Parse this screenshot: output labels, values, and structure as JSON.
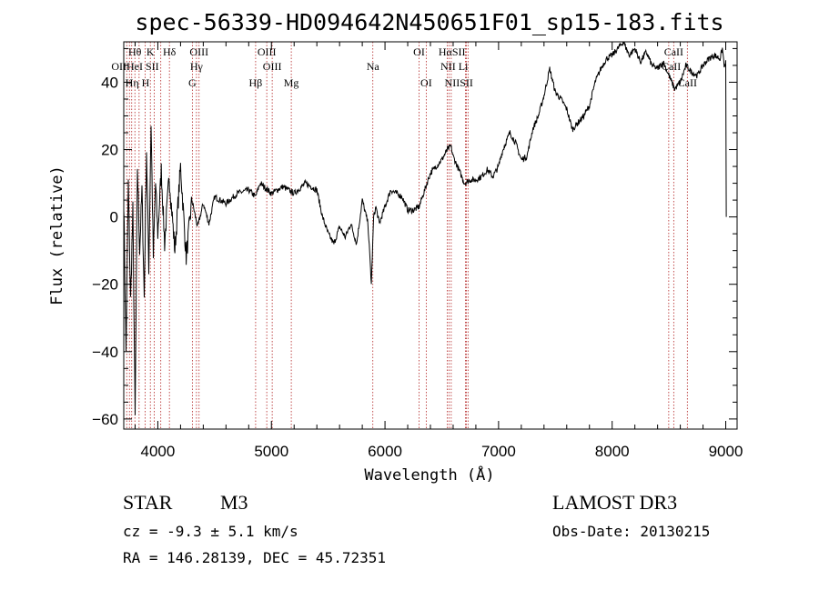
{
  "chart_data": {
    "type": "line",
    "title": "spec-56339-HD094642N450651F01_sp15-183.fits",
    "xlabel": "Wavelength (Å)",
    "ylabel": "Flux (relative)",
    "xlim": [
      3700,
      9100
    ],
    "ylim": [
      -63,
      52
    ],
    "x_ticks": [
      4000,
      5000,
      6000,
      7000,
      8000,
      9000
    ],
    "y_ticks": [
      -60,
      -40,
      -20,
      0,
      20,
      40
    ],
    "grid": false,
    "legend": "none",
    "series": [
      {
        "color": "#000000",
        "x": [
          3700,
          3720,
          3740,
          3760,
          3780,
          3800,
          3820,
          3840,
          3860,
          3880,
          3900,
          3920,
          3940,
          3960,
          3980,
          4000,
          4030,
          4060,
          4100,
          4150,
          4200,
          4250,
          4300,
          4350,
          4400,
          4450,
          4500,
          4600,
          4700,
          4800,
          4860,
          4900,
          5000,
          5100,
          5200,
          5300,
          5400,
          5450,
          5500,
          5550,
          5600,
          5650,
          5700,
          5750,
          5800,
          5850,
          5880,
          5900,
          5920,
          5950,
          6000,
          6050,
          6100,
          6150,
          6200,
          6250,
          6300,
          6350,
          6400,
          6450,
          6500,
          6550,
          6580,
          6600,
          6650,
          6700,
          6750,
          6800,
          6850,
          6900,
          6950,
          7000,
          7020,
          7050,
          7100,
          7150,
          7200,
          7250,
          7300,
          7350,
          7400,
          7450,
          7500,
          7550,
          7600,
          7650,
          7700,
          7750,
          7800,
          7850,
          7900,
          7950,
          8000,
          8050,
          8100,
          8150,
          8200,
          8250,
          8300,
          8350,
          8400,
          8450,
          8500,
          8550,
          8600,
          8650,
          8700,
          8750,
          8800,
          8850,
          8900,
          8950,
          8970,
          8990,
          9000,
          9005
        ],
        "y": [
          5,
          -40,
          10,
          -25,
          2,
          -60,
          15,
          -10,
          8,
          -24,
          20,
          -15,
          28,
          -12,
          10,
          -5,
          14,
          -8,
          12,
          -10,
          15,
          -12,
          5,
          -3,
          4,
          -2,
          6,
          4,
          7,
          8,
          6,
          10,
          7,
          9,
          7,
          10,
          8,
          0,
          -5,
          -8,
          -3,
          -6,
          -2,
          -8,
          5,
          -2,
          -20,
          0,
          3,
          -2,
          3,
          8,
          7,
          6,
          2,
          2,
          3,
          8,
          13,
          15,
          17,
          20,
          21,
          18,
          14,
          10,
          11,
          11,
          12,
          14,
          12,
          15,
          18,
          21,
          25,
          22,
          17,
          18,
          26,
          30,
          36,
          44,
          37,
          35,
          32,
          26,
          28,
          30,
          33,
          40,
          44,
          47,
          48,
          50,
          52,
          48,
          50,
          46,
          49,
          45,
          44,
          46,
          42,
          38,
          40,
          45,
          43,
          42,
          45,
          47,
          48,
          47,
          50,
          44,
          46,
          0
        ]
      }
    ],
    "line_labels": [
      {
        "label": "Hθ",
        "x": 3798,
        "row": 1
      },
      {
        "label": "K",
        "x": 3934,
        "row": 1
      },
      {
        "label": "Hδ",
        "x": 4102,
        "row": 1
      },
      {
        "label": "OIII",
        "x": 4363,
        "row": 1
      },
      {
        "label": "OIII",
        "x": 4959,
        "row": 1
      },
      {
        "label": "OI",
        "x": 6300,
        "row": 1
      },
      {
        "label": "HαSII",
        "x": 6590,
        "row": 1
      },
      {
        "label": "CaII",
        "x": 8542,
        "row": 1
      },
      {
        "label": "OIIHeI SII",
        "x": 3800,
        "row": 2
      },
      {
        "label": "Hγ",
        "x": 4340,
        "row": 2
      },
      {
        "label": "OIII",
        "x": 5007,
        "row": 2
      },
      {
        "label": "Na",
        "x": 5893,
        "row": 2
      },
      {
        "label": "NII Li",
        "x": 6610,
        "row": 2
      },
      {
        "label": "CaII",
        "x": 8520,
        "row": 2
      },
      {
        "label": "Hη H",
        "x": 3820,
        "row": 3
      },
      {
        "label": "G",
        "x": 4304,
        "row": 3
      },
      {
        "label": "Hβ",
        "x": 4861,
        "row": 3
      },
      {
        "label": "Mg",
        "x": 5175,
        "row": 3
      },
      {
        "label": "OI",
        "x": 6363,
        "row": 3
      },
      {
        "label": "NIISII",
        "x": 6650,
        "row": 3
      },
      {
        "label": "CaII",
        "x": 8662,
        "row": 3
      }
    ],
    "line_markers_x": [
      3726,
      3750,
      3770,
      3798,
      3835,
      3889,
      3934,
      3968,
      4026,
      4102,
      4304,
      4340,
      4363,
      4861,
      4959,
      5007,
      5175,
      5893,
      6300,
      6363,
      6548,
      6563,
      6583,
      6708,
      6716,
      6731,
      8498,
      8542,
      8662
    ]
  },
  "info": {
    "object_type": "STAR",
    "subclass": "M3",
    "release": "LAMOST DR3",
    "cz": "cz = -9.3 ± 5.1 km/s",
    "obs_date": "Obs-Date: 20130215",
    "radec": "RA = 146.28139, DEC =  45.72351"
  }
}
